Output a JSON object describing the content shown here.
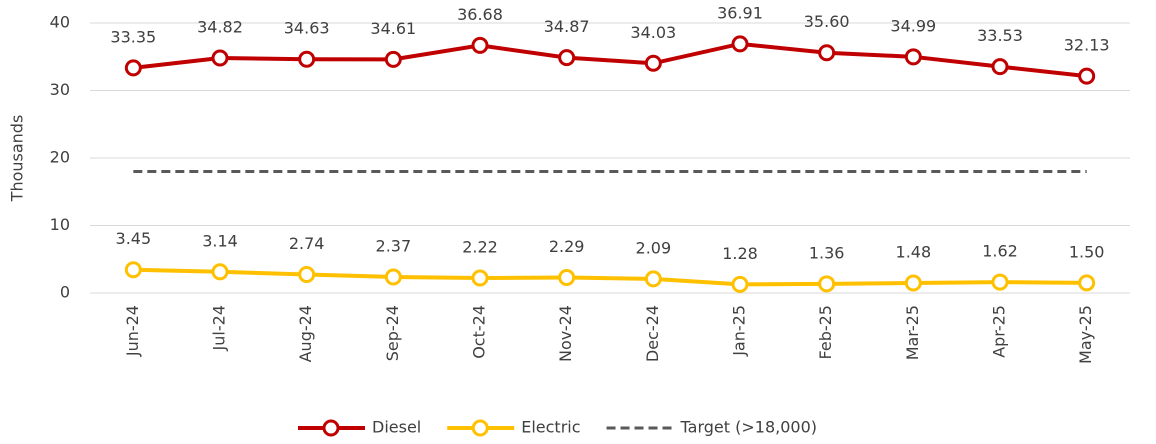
{
  "chart_data": {
    "type": "line",
    "y_label": "Thousands",
    "categories": [
      "Jun-24",
      "Jul-24",
      "Aug-24",
      "Sep-24",
      "Oct-24",
      "Nov-24",
      "Dec-24",
      "Jan-25",
      "Feb-25",
      "Mar-25",
      "Apr-25",
      "May-25"
    ],
    "ylim": [
      0,
      40
    ],
    "yticks": [
      0,
      10,
      20,
      30,
      40
    ],
    "grid": true,
    "legend": "bottom",
    "series": [
      {
        "name": "Diesel",
        "color": "#c00000",
        "marker": true,
        "values": [
          33.35,
          34.82,
          34.63,
          34.61,
          36.68,
          34.87,
          34.03,
          36.91,
          35.6,
          34.99,
          33.53,
          32.13
        ],
        "value_labels": [
          "33.35",
          "34.82",
          "34.63",
          "34.61",
          "36.68",
          "34.87",
          "34.03",
          "36.91",
          "35.60",
          "34.99",
          "33.53",
          "32.13"
        ]
      },
      {
        "name": "Electric",
        "color": "#ffc000",
        "marker": true,
        "values": [
          3.45,
          3.14,
          2.74,
          2.37,
          2.22,
          2.29,
          2.09,
          1.28,
          1.36,
          1.48,
          1.62,
          1.5
        ],
        "value_labels": [
          "3.45",
          "3.14",
          "2.74",
          "2.37",
          "2.22",
          "2.29",
          "2.09",
          "1.28",
          "1.36",
          "1.48",
          "1.62",
          "1.50"
        ]
      },
      {
        "name": "Target (>18,000)",
        "color": "#595959",
        "dashed": true,
        "values": [
          18,
          18,
          18,
          18,
          18,
          18,
          18,
          18,
          18,
          18,
          18,
          18
        ]
      }
    ]
  }
}
